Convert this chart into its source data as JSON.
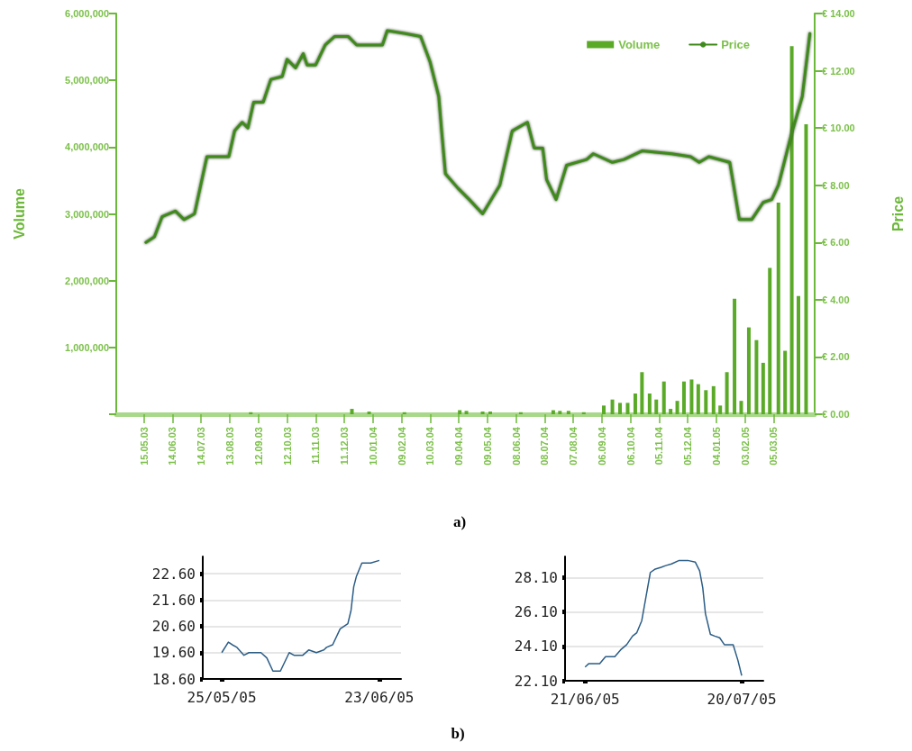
{
  "chart_data": [
    {
      "type": "bar",
      "ylabel": "Volume",
      "y2label": "Price",
      "annotations": [
        "a)"
      ],
      "legend": "top right",
      "xlim": [
        "2003-04-16",
        "2005-04-17"
      ],
      "xticks": [
        {
          "value": "2003-05-15",
          "label": "15.05.03"
        },
        {
          "value": "2003-06-14",
          "label": "14.06.03"
        },
        {
          "value": "2003-07-14",
          "label": "14.07.03"
        },
        {
          "value": "2003-08-13",
          "label": "13.08.03"
        },
        {
          "value": "2003-09-12",
          "label": "12.09.03"
        },
        {
          "value": "2003-10-12",
          "label": "12.10.03"
        },
        {
          "value": "2003-11-11",
          "label": "11.11.03"
        },
        {
          "value": "2003-12-11",
          "label": "11.12.03"
        },
        {
          "value": "2004-01-10",
          "label": "10.01.04"
        },
        {
          "value": "2004-02-09",
          "label": "09.02.04"
        },
        {
          "value": "2004-03-10",
          "label": "10.03.04"
        },
        {
          "value": "2004-04-09",
          "label": "09.04.04"
        },
        {
          "value": "2004-05-09",
          "label": "09.05.04"
        },
        {
          "value": "2004-06-08",
          "label": "08.06.04"
        },
        {
          "value": "2004-07-08",
          "label": "08.07.04"
        },
        {
          "value": "2004-08-07",
          "label": "07.08.04"
        },
        {
          "value": "2004-09-06",
          "label": "06.09.04"
        },
        {
          "value": "2004-10-06",
          "label": "06.10.04"
        },
        {
          "value": "2004-11-05",
          "label": "05.11.04"
        },
        {
          "value": "2004-12-05",
          "label": "05.12.04"
        },
        {
          "value": "2005-01-04",
          "label": "04.01.05"
        },
        {
          "value": "2005-02-03",
          "label": "03.02.05"
        },
        {
          "value": "2005-03-05",
          "label": "05.03.05"
        }
      ],
      "ylim": [
        0,
        6000000
      ],
      "yticks": [
        {
          "value": 0,
          "label": null
        },
        {
          "value": 1000000,
          "label": "1,000,000"
        },
        {
          "value": 2000000,
          "label": "2,000,000"
        },
        {
          "value": 3000000,
          "label": "3,000,000"
        },
        {
          "value": 4000000,
          "label": "4,000,000"
        },
        {
          "value": 5000000,
          "label": "5,000,000"
        },
        {
          "value": 6000000,
          "label": "6,000,000"
        }
      ],
      "y2lim": [
        0,
        14
      ],
      "y2ticks": [
        {
          "value": 0,
          "label": "€ 0.00"
        },
        {
          "value": 2,
          "label": "€ 2.00"
        },
        {
          "value": 4,
          "label": "€ 4.00"
        },
        {
          "value": 6,
          "label": "€ 6.00"
        },
        {
          "value": 8,
          "label": "€ 8.00"
        },
        {
          "value": 10,
          "label": "€ 10.00"
        },
        {
          "value": 12,
          "label": "€ 12.00"
        },
        {
          "value": 14,
          "label": "€ 14.00"
        }
      ],
      "series": [
        {
          "name": "Volume",
          "color": "#5aaa28",
          "x": [
            "2003-09-04",
            "2003-12-19",
            "2004-01-06",
            "2004-02-12",
            "2004-04-10",
            "2004-04-17",
            "2004-05-04",
            "2004-05-12",
            "2004-06-13",
            "2004-07-17",
            "2004-07-24",
            "2004-08-02",
            "2004-08-18",
            "2004-09-08",
            "2004-09-17",
            "2004-09-25",
            "2004-10-03",
            "2004-10-11",
            "2004-10-18",
            "2004-10-26",
            "2004-11-02",
            "2004-11-10",
            "2004-11-17",
            "2004-11-24",
            "2004-12-01",
            "2004-12-09",
            "2004-12-16",
            "2004-12-24",
            "2005-01-01",
            "2005-01-08",
            "2005-01-15",
            "2005-01-23",
            "2005-01-30",
            "2005-02-07",
            "2005-02-15",
            "2005-02-22",
            "2005-03-01",
            "2005-03-10",
            "2005-03-17",
            "2005-03-24",
            "2005-03-31",
            "2005-04-08"
          ],
          "values": [
            30000,
            80000,
            40000,
            30000,
            60000,
            50000,
            40000,
            40000,
            30000,
            60000,
            50000,
            50000,
            30000,
            130000,
            220000,
            170000,
            170000,
            310000,
            630000,
            310000,
            220000,
            490000,
            80000,
            200000,
            490000,
            520000,
            450000,
            360000,
            420000,
            130000,
            630000,
            1730000,
            200000,
            1300000,
            1110000,
            770000,
            2190000,
            3170000,
            950000,
            5510000,
            1770000,
            4340000
          ]
        },
        {
          "name": "Price",
          "type": "line",
          "axis": "y2",
          "color": "#3f8a1c",
          "x": [
            "2003-05-17",
            "2003-05-26",
            "2003-06-03",
            "2003-06-17",
            "2003-06-26",
            "2003-07-07",
            "2003-07-20",
            "2003-08-12",
            "2003-08-18",
            "2003-08-26",
            "2003-09-01",
            "2003-09-07",
            "2003-09-17",
            "2003-09-25",
            "2003-10-07",
            "2003-10-12",
            "2003-10-21",
            "2003-10-29",
            "2003-11-02",
            "2003-11-11",
            "2003-11-21",
            "2003-12-01",
            "2003-12-15",
            "2003-12-24",
            "2004-01-20",
            "2004-01-25",
            "2004-02-13",
            "2004-02-29",
            "2004-03-10",
            "2004-03-19",
            "2004-03-22",
            "2004-03-26",
            "2004-04-08",
            "2004-04-20",
            "2004-05-04",
            "2004-05-22",
            "2004-06-04",
            "2004-06-20",
            "2004-06-27",
            "2004-07-06",
            "2004-07-10",
            "2004-07-20",
            "2004-07-31",
            "2004-08-21",
            "2004-08-28",
            "2004-09-17",
            "2004-09-29",
            "2004-10-18",
            "2004-11-18",
            "2004-12-08",
            "2004-12-17",
            "2004-12-27",
            "2005-01-18",
            "2005-01-28",
            "2005-02-10",
            "2005-02-22",
            "2005-03-03",
            "2005-03-10",
            "2005-03-23",
            "2005-04-04",
            "2005-04-12"
          ],
          "values": [
            6.0,
            6.2,
            6.9,
            7.1,
            6.8,
            7.0,
            9.0,
            9.0,
            9.9,
            10.2,
            10.0,
            10.9,
            10.9,
            11.7,
            11.8,
            12.4,
            12.1,
            12.6,
            12.2,
            12.2,
            12.9,
            13.2,
            13.2,
            12.9,
            12.9,
            13.4,
            13.3,
            13.2,
            12.3,
            11.1,
            9.9,
            8.4,
            7.9,
            7.5,
            7.0,
            8.0,
            9.9,
            10.2,
            9.3,
            9.3,
            8.2,
            7.5,
            8.7,
            8.9,
            9.1,
            8.8,
            8.9,
            9.2,
            9.1,
            9.0,
            8.8,
            9.0,
            8.8,
            6.8,
            6.8,
            7.4,
            7.5,
            8.0,
            9.7,
            11.1,
            13.3
          ]
        }
      ]
    },
    {
      "type": "line",
      "grid": "y",
      "color": "#2b5d86",
      "xlim": [
        "2005-05-21T12:00",
        "2005-06-27"
      ],
      "xticks": [
        {
          "value": "2005-05-25",
          "label": "25/05/05"
        },
        {
          "value": "2005-06-23",
          "label": "23/06/05"
        }
      ],
      "ylim": [
        18.6,
        23.25
      ],
      "yticks": [
        {
          "value": 18.6,
          "label": "18.60"
        },
        {
          "value": 19.6,
          "label": "19.60"
        },
        {
          "value": 20.6,
          "label": "20.60"
        },
        {
          "value": 21.6,
          "label": "21.60"
        },
        {
          "value": 22.6,
          "label": "22.60"
        }
      ],
      "x": [
        "2005-05-25",
        "2005-05-26T05:00",
        "2005-05-26T22:00",
        "2005-05-27T19:00",
        "2005-05-29T02:00",
        "2005-05-30",
        "2005-06-01T05:00",
        "2005-06-02T07:00",
        "2005-06-03T10:00",
        "2005-06-04T19:00",
        "2005-06-06T10:00",
        "2005-06-07T07:00",
        "2005-06-08T22:00",
        "2005-06-10",
        "2005-06-11T10:00",
        "2005-06-12T19:00",
        "2005-06-13T07:00",
        "2005-06-14T10:00",
        "2005-06-15T19:00",
        "2005-06-17T05:00",
        "2005-06-17T19:00",
        "2005-06-18T07:00",
        "2005-06-18T19:00",
        "2005-06-19T19:00",
        "2005-06-21T10:00",
        "2005-06-23"
      ],
      "values": [
        19.6,
        20.0,
        19.9,
        19.8,
        19.5,
        19.6,
        19.6,
        19.4,
        18.9,
        18.9,
        19.6,
        19.5,
        19.5,
        19.7,
        19.6,
        19.7,
        19.8,
        19.9,
        20.5,
        20.7,
        21.2,
        22.1,
        22.5,
        23.0,
        23.0,
        23.1
      ]
    },
    {
      "type": "line",
      "grid": "y",
      "color": "#2b5d86",
      "annotations": [
        "b)"
      ],
      "xlim": [
        "2005-06-17T07:00",
        "2005-07-24"
      ],
      "xticks": [
        {
          "value": "2005-06-21",
          "label": "21/06/05"
        },
        {
          "value": "2005-07-20",
          "label": "20/07/05"
        }
      ],
      "ylim": [
        22.1,
        29.33
      ],
      "yticks": [
        {
          "value": 22.1,
          "label": "22.10"
        },
        {
          "value": 24.1,
          "label": "24.10"
        },
        {
          "value": 26.1,
          "label": "26.10"
        },
        {
          "value": 28.1,
          "label": "28.10"
        }
      ],
      "x": [
        "2005-06-21",
        "2005-06-21T17:00",
        "2005-06-23T17:00",
        "2005-06-24T19:00",
        "2005-06-26T12:00",
        "2005-06-27T14:00",
        "2005-06-28T17:00",
        "2005-06-29T19:00",
        "2005-06-30T14:00",
        "2005-07-01T12:00",
        "2005-07-02T07:00",
        "2005-07-03T02:00",
        "2005-07-04",
        "2005-07-05T02:00",
        "2005-07-05T22:00",
        "2005-07-07",
        "2005-07-08T10:00",
        "2005-07-10",
        "2005-07-11T10:00",
        "2005-07-12T05:00",
        "2005-07-12T19:00",
        "2005-07-13T07:00",
        "2005-07-14T05:00",
        "2005-07-15",
        "2005-07-15T22:00",
        "2005-07-16T19:00",
        "2005-07-18T10:00",
        "2005-07-19T07:00",
        "2005-07-20"
      ],
      "values": [
        22.9,
        23.1,
        23.1,
        23.5,
        23.5,
        23.9,
        24.2,
        24.7,
        24.9,
        25.6,
        27.0,
        28.4,
        28.6,
        28.7,
        28.8,
        28.9,
        29.1,
        29.1,
        29.0,
        28.5,
        27.5,
        26.0,
        24.8,
        24.7,
        24.6,
        24.2,
        24.2,
        23.3,
        22.4
      ]
    }
  ]
}
